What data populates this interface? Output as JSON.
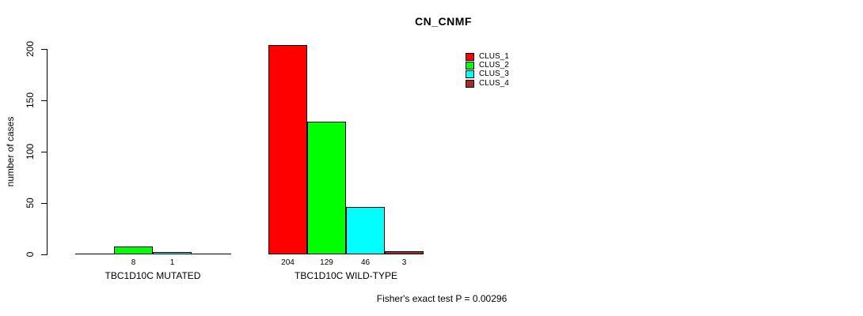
{
  "chart_data": {
    "type": "bar",
    "title": "CN_CNMF",
    "ylabel": "number of cases",
    "xlabel": "",
    "ylim": [
      0,
      200
    ],
    "yticks": [
      0,
      50,
      100,
      150,
      200
    ],
    "grid": false,
    "legend_position": "top-right",
    "categories": [
      "TBC1D10C MUTATED",
      "TBC1D10C WILD-TYPE"
    ],
    "series": [
      {
        "name": "CLUS_1",
        "color": "#FF0000",
        "values": [
          0,
          204
        ]
      },
      {
        "name": "CLUS_2",
        "color": "#00FF00",
        "values": [
          8,
          129
        ]
      },
      {
        "name": "CLUS_3",
        "color": "#00FFFF",
        "values": [
          1,
          46
        ]
      },
      {
        "name": "CLUS_4",
        "color": "#A52A2A",
        "values": [
          0,
          3
        ]
      }
    ],
    "show_value_labels": true,
    "hide_zero_value_labels": true,
    "annotation": "Fisher's exact test P = 0.00296"
  },
  "colors": {
    "background": "#FFFFFF",
    "axis": "#000000",
    "bar_border": "#000000",
    "text": "#000000"
  }
}
